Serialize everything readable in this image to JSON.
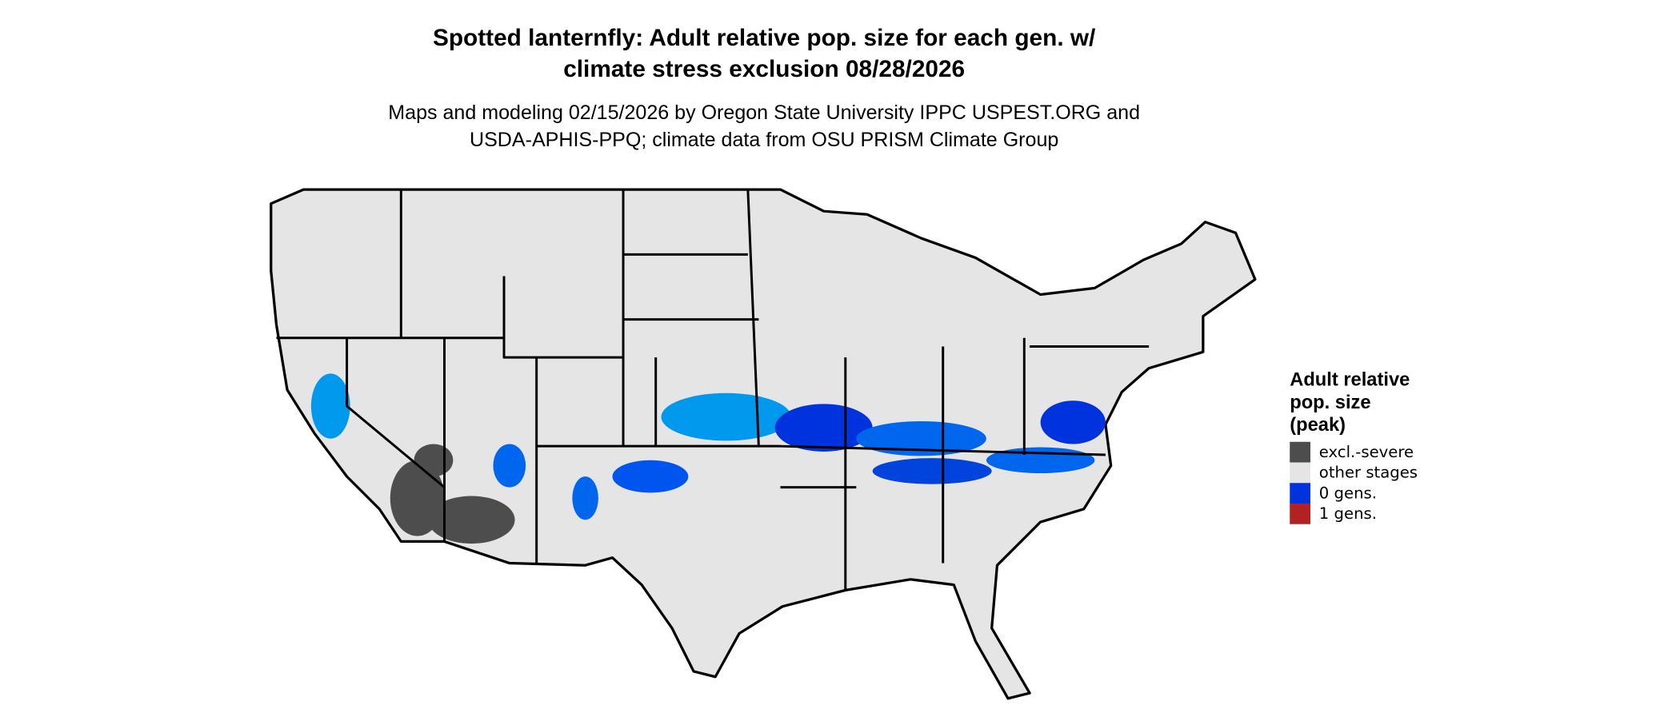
{
  "title": [
    "Spotted lanternfly: Adult relative pop. size for each gen. w/",
    "climate stress exclusion 08/28/2026"
  ],
  "subtitle": [
    "Maps and modeling 02/15/2026 by Oregon State University IPPC USPEST.ORG and",
    "USDA-APHIS-PPQ; climate data from OSU PRISM Climate Group"
  ],
  "legend": {
    "title": [
      "Adult relative",
      "pop. size",
      "(peak)"
    ],
    "items": [
      {
        "label": "excl.-severe",
        "color": "#4d4d4d"
      },
      {
        "label": "other stages",
        "color": "#e5e5e5"
      },
      {
        "label": "0 gens.",
        "color": "#0033dd"
      },
      {
        "label": "1 gens.",
        "color": "#b22222"
      }
    ]
  }
}
